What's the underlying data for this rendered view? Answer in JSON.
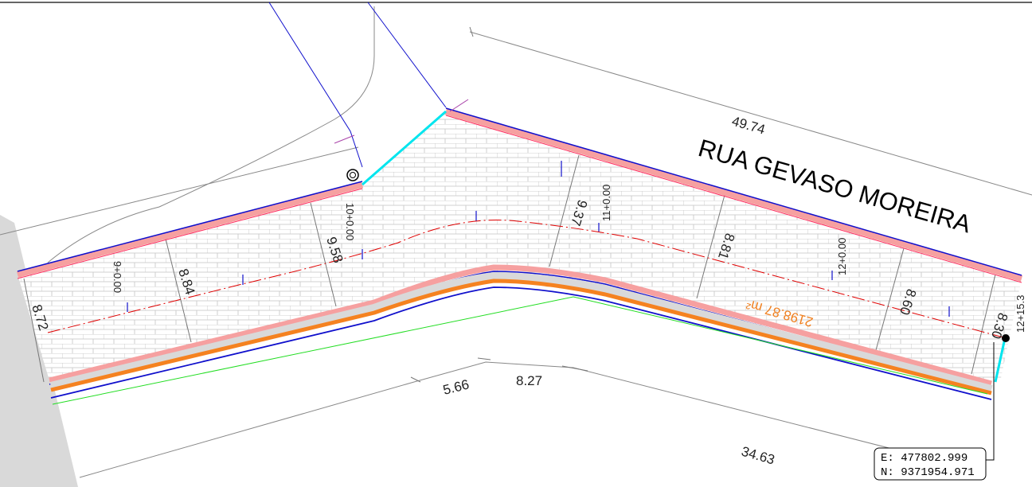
{
  "street_name": "RUA GEVASO MOREIRA",
  "area_label": "2198.87 m²",
  "dimensions": {
    "top": "49.74",
    "bottom_long": "34.63",
    "bottom_a": "5.66",
    "bottom_b": "8.27"
  },
  "widths": [
    "8.72",
    "8.84",
    "9.58",
    "9.37",
    "8.81",
    "8.60",
    "8.30"
  ],
  "stations": [
    "9+0.00",
    "10+0.00",
    "11+0.00",
    "12+0.00",
    "12+15.3"
  ],
  "coordinate": {
    "e": "E: 477802.999",
    "n": "N: 9371954.971"
  },
  "colors": {
    "paving_hatch": "#bdbdbd",
    "curb_fill": "#f6a0a0",
    "curb_edge": "#ff3060",
    "offset_line": "#1010cc",
    "centerline": "#e00000",
    "sidewalk": "#f58220",
    "limit": "#00e5ee",
    "ground": "#22dd22",
    "grey_band": "#d9d9d9"
  }
}
